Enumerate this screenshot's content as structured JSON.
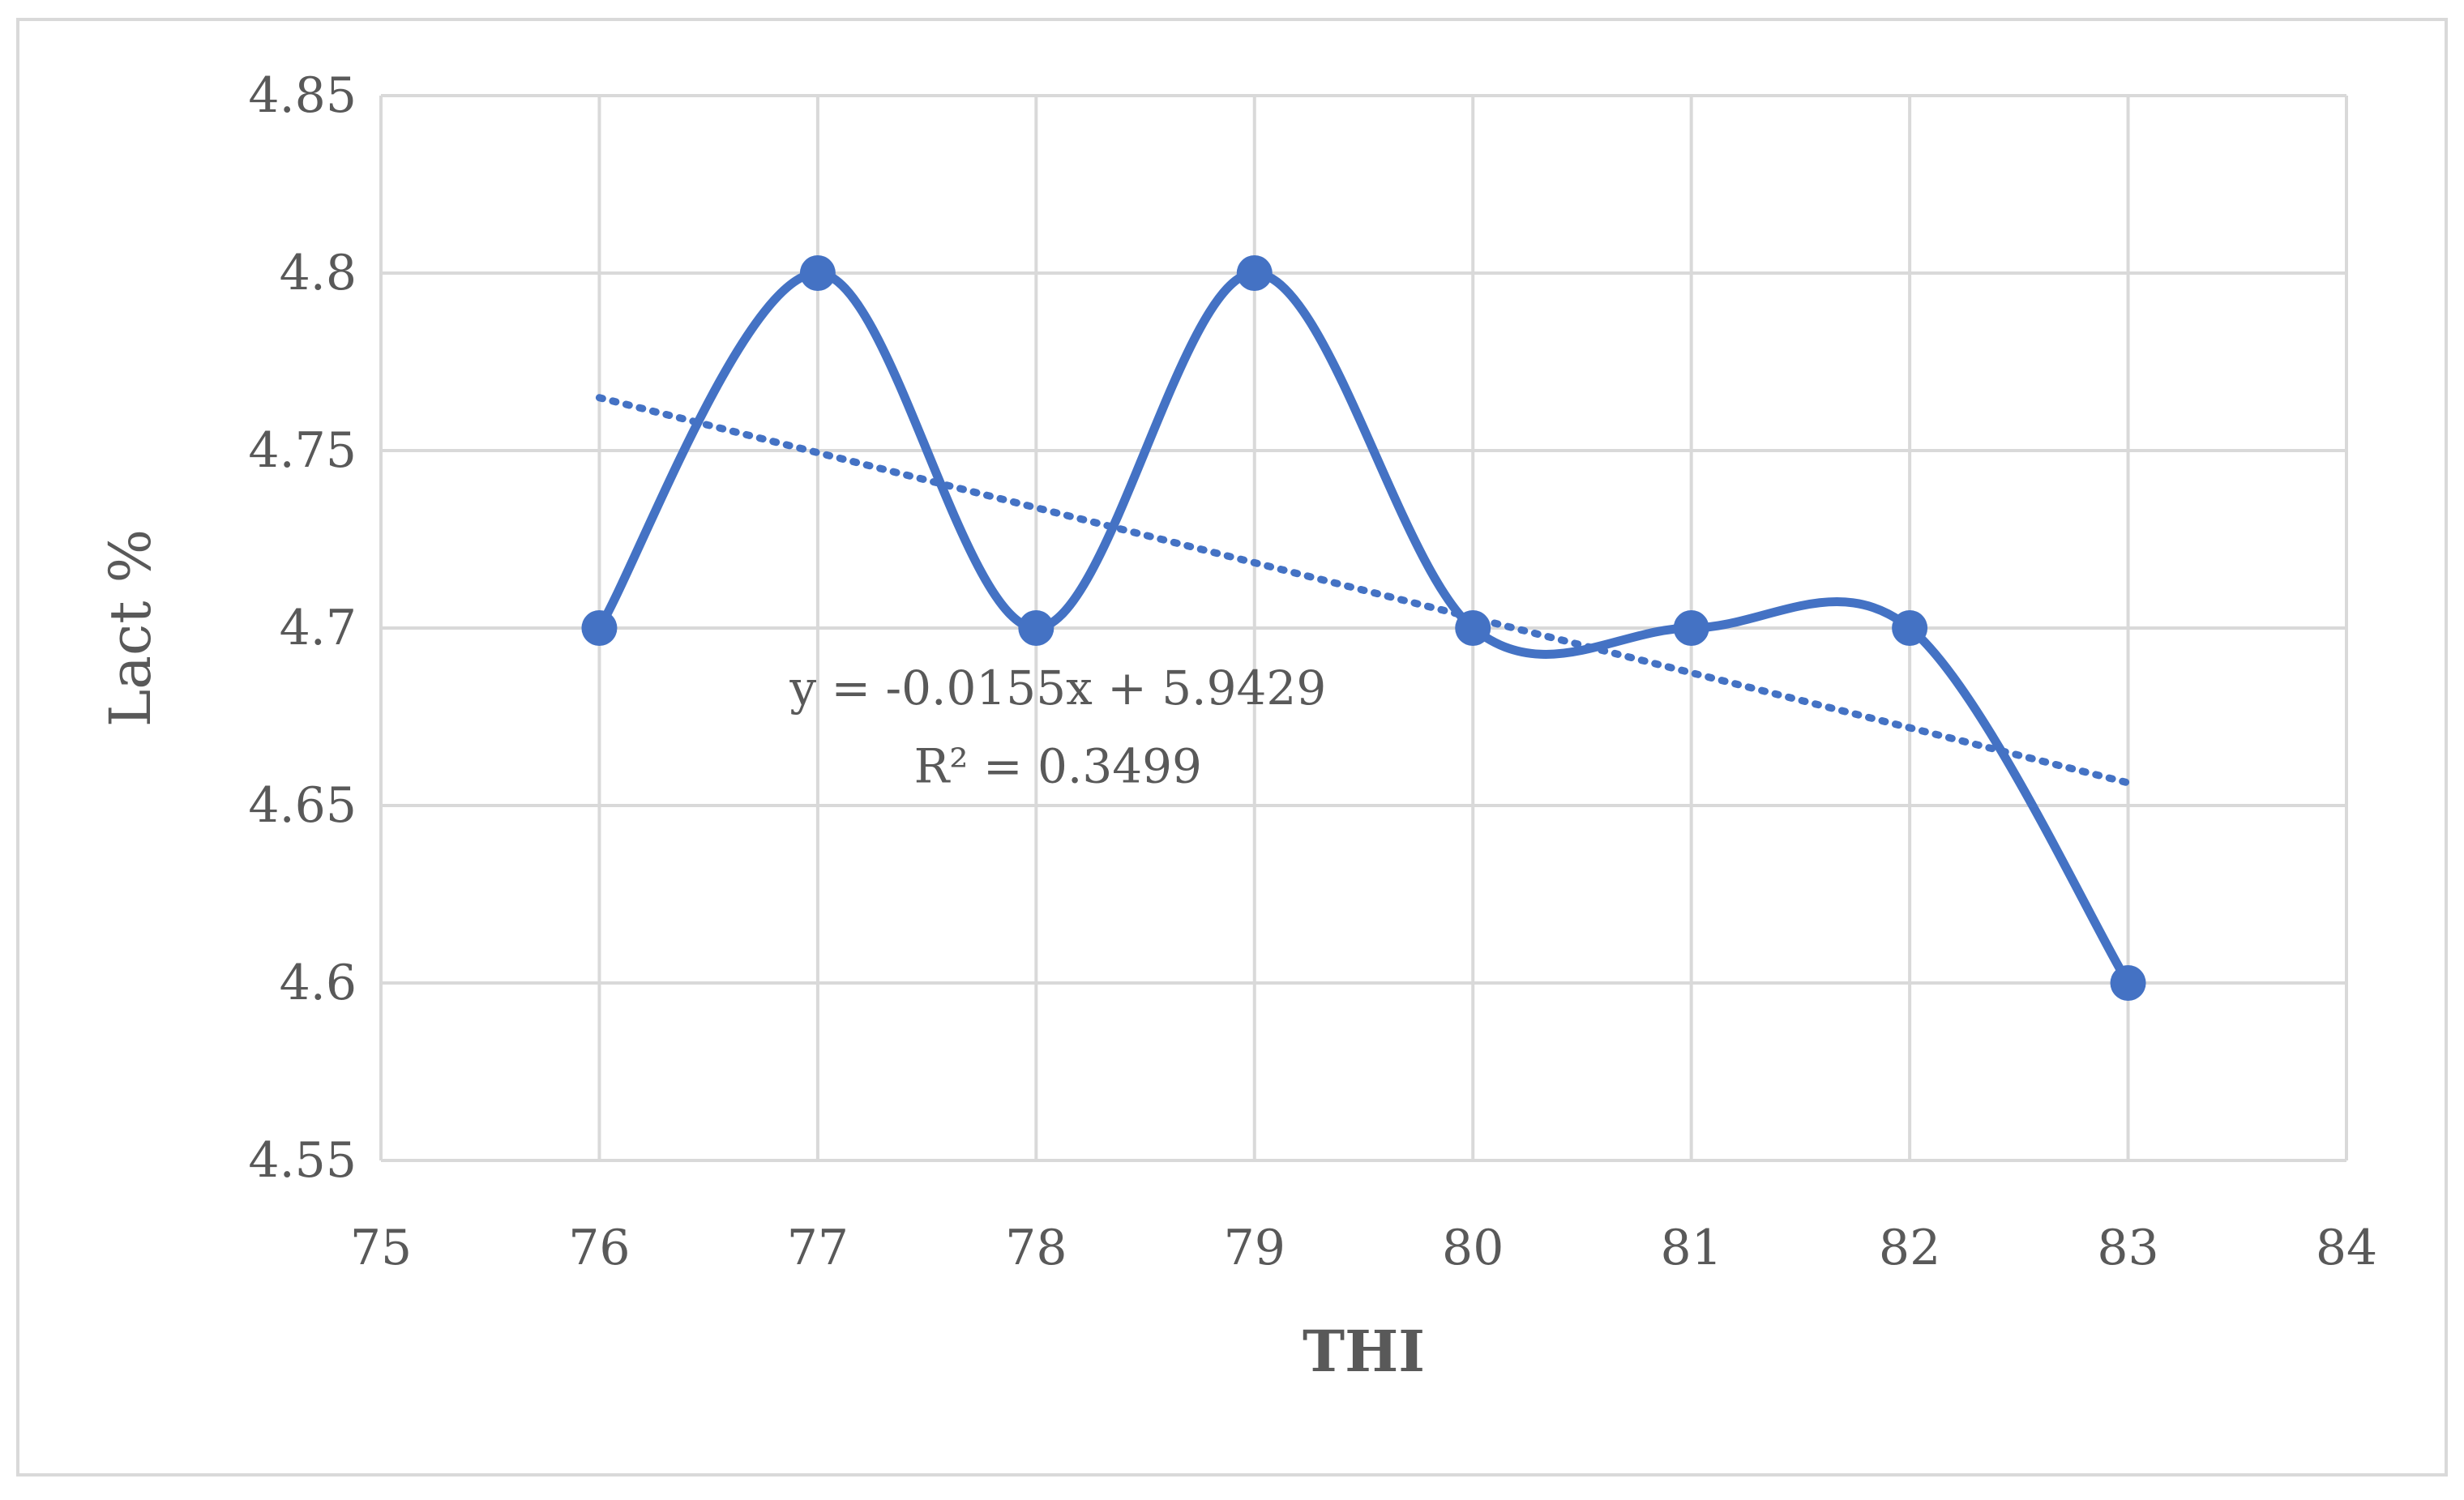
{
  "chart_data": {
    "type": "scatter",
    "title": "",
    "xlabel": "THI",
    "ylabel": "Lact %",
    "xlim": [
      75,
      84
    ],
    "ylim": [
      4.55,
      4.85
    ],
    "x_ticks": [
      75,
      76,
      77,
      78,
      79,
      80,
      81,
      82,
      83,
      84
    ],
    "y_ticks": [
      4.55,
      4.6,
      4.65,
      4.7,
      4.75,
      4.8,
      4.85
    ],
    "y_tick_labels": [
      "4.55",
      "4.6",
      "4.65",
      "4.7",
      "4.75",
      "4.8",
      "4.85"
    ],
    "grid": true,
    "legend": "none",
    "series": [
      {
        "x": [
          76,
          77,
          78,
          79,
          80,
          81,
          82,
          83
        ],
        "y": [
          4.7,
          4.8,
          4.7,
          4.8,
          4.7,
          4.7,
          4.7,
          4.6
        ],
        "line": "smooth",
        "marker": "circle",
        "color": "#4472c4"
      }
    ],
    "trendline": {
      "type": "linear",
      "slope": -0.0155,
      "intercept": 5.9429,
      "x_range": [
        76,
        83
      ],
      "style": "dotted",
      "color": "#4472c4",
      "equation_label": "y = -0.0155x + 5.9429",
      "r2_label": "R² = 0.3499"
    }
  }
}
